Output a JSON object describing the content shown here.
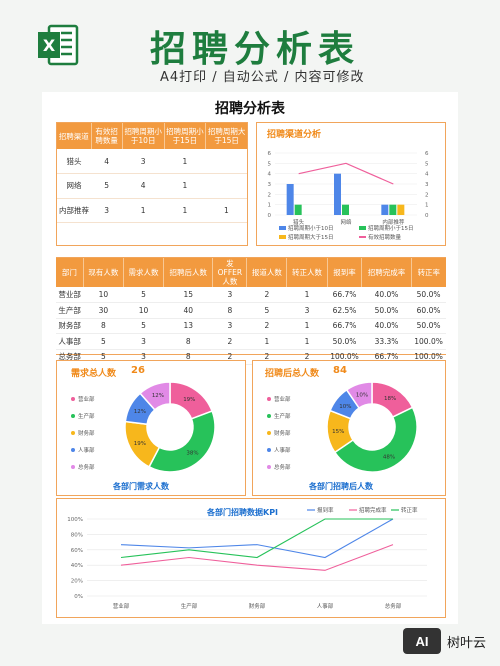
{
  "header": {
    "title": "招聘分析表",
    "subtitle": "A4打印 / 自动公式 / 内容可修改",
    "logo_letter": "X"
  },
  "sheet": {
    "title": "招聘分析表"
  },
  "channel_table": {
    "headers": [
      "招聘渠道",
      "有效招聘数量",
      "招聘周期小于10日",
      "招聘周期小于15日",
      "招聘周期大于15日"
    ],
    "rows": [
      [
        "猎头",
        "4",
        "3",
        "1",
        ""
      ],
      [
        "网络",
        "5",
        "4",
        "1",
        ""
      ],
      [
        "内部推荐",
        "3",
        "1",
        "1",
        "1"
      ]
    ]
  },
  "dept_table": {
    "headers": [
      "部门",
      "现有人数",
      "需求人数",
      "招聘后人数",
      "发OFFER人数",
      "报道人数",
      "转正人数",
      "报到率",
      "招聘完成率",
      "转正率"
    ],
    "rows": [
      [
        "营业部",
        "10",
        "5",
        "15",
        "3",
        "2",
        "1",
        "66.7%",
        "40.0%",
        "50.0%"
      ],
      [
        "生产部",
        "30",
        "10",
        "40",
        "8",
        "5",
        "3",
        "62.5%",
        "50.0%",
        "60.0%"
      ],
      [
        "财务部",
        "8",
        "5",
        "13",
        "3",
        "2",
        "1",
        "66.7%",
        "40.0%",
        "50.0%"
      ],
      [
        "人事部",
        "5",
        "3",
        "8",
        "2",
        "1",
        "1",
        "50.0%",
        "33.3%",
        "100.0%"
      ],
      [
        "总务部",
        "5",
        "3",
        "8",
        "2",
        "2",
        "2",
        "100.0%",
        "66.7%",
        "100.0%"
      ]
    ]
  },
  "demand_box": {
    "title": "需求总人数",
    "total": "26",
    "caption": "各部门需求人数",
    "legend": [
      "营业部",
      "生产部",
      "财务部",
      "人事部",
      "总务部"
    ],
    "slice_labels": [
      "19%",
      "38%",
      "19%",
      "12%",
      "12%"
    ]
  },
  "after_box": {
    "title": "招聘后总人数",
    "total": "84",
    "caption": "各部门招聘后人数",
    "legend": [
      "营业部",
      "生产部",
      "财务部",
      "人事部",
      "总务部"
    ],
    "slice_labels": [
      "18%",
      "48%",
      "15%",
      "10%",
      "10%"
    ]
  },
  "colors": {
    "pink": "#ef5f9b",
    "green": "#27c25a",
    "yellow": "#f7b71c",
    "blue": "#4e86e8",
    "purple": "#e18ae6",
    "orange": "#f29a3f",
    "title_green": "#1e7d3e"
  },
  "chart_data": [
    {
      "type": "bar",
      "title": "招聘渠道分析",
      "categories": [
        "猎头",
        "网络",
        "内部推荐"
      ],
      "series": [
        {
          "name": "招聘周期小于10日",
          "values": [
            3,
            4,
            1
          ],
          "color": "#4e86e8"
        },
        {
          "name": "招聘周期小于15日",
          "values": [
            1,
            1,
            1
          ],
          "color": "#27c25a"
        },
        {
          "name": "招聘周期大于15日",
          "values": [
            0,
            0,
            1
          ],
          "color": "#f7b71c"
        },
        {
          "name": "有效招聘数量",
          "values": [
            4,
            5,
            3
          ],
          "color": "#ef5f9b",
          "kind": "line"
        }
      ],
      "ylim": [
        0,
        6
      ],
      "yticks": [
        "0",
        "1",
        "2",
        "3",
        "4",
        "5",
        "6"
      ],
      "y2ticks": [
        "0",
        "1",
        "2",
        "3",
        "4",
        "5",
        "6"
      ],
      "legend_position": "bottom"
    },
    {
      "type": "pie",
      "title": "需求总人数",
      "categories": [
        "营业部",
        "生产部",
        "财务部",
        "人事部",
        "总务部"
      ],
      "values": [
        5,
        10,
        5,
        3,
        3
      ],
      "labels": [
        "19%",
        "38%",
        "19%",
        "12%",
        "12%"
      ]
    },
    {
      "type": "pie",
      "title": "招聘后总人数",
      "categories": [
        "营业部",
        "生产部",
        "财务部",
        "人事部",
        "总务部"
      ],
      "values": [
        15,
        40,
        13,
        8,
        8
      ],
      "labels": [
        "18%",
        "48%",
        "15%",
        "10%",
        "10%"
      ]
    },
    {
      "type": "line",
      "title": "各部门招聘数据KPI",
      "categories": [
        "营业部",
        "生产部",
        "财务部",
        "人事部",
        "总务部"
      ],
      "series": [
        {
          "name": "报到率",
          "values": [
            66.7,
            62.5,
            66.7,
            50.0,
            100.0
          ],
          "color": "#4e86e8"
        },
        {
          "name": "招聘完成率",
          "values": [
            40.0,
            50.0,
            40.0,
            33.3,
            66.7
          ],
          "color": "#ef5f9b"
        },
        {
          "name": "转正率",
          "values": [
            50.0,
            60.0,
            50.0,
            100.0,
            100.0
          ],
          "color": "#27c25a"
        }
      ],
      "yticks": [
        "0%",
        "20%",
        "40%",
        "60%",
        "80%",
        "100%"
      ],
      "ylim": [
        0,
        100
      ],
      "legend_position": "top-right"
    }
  ],
  "watermark": {
    "logo": "AI",
    "text": "树叶云"
  }
}
